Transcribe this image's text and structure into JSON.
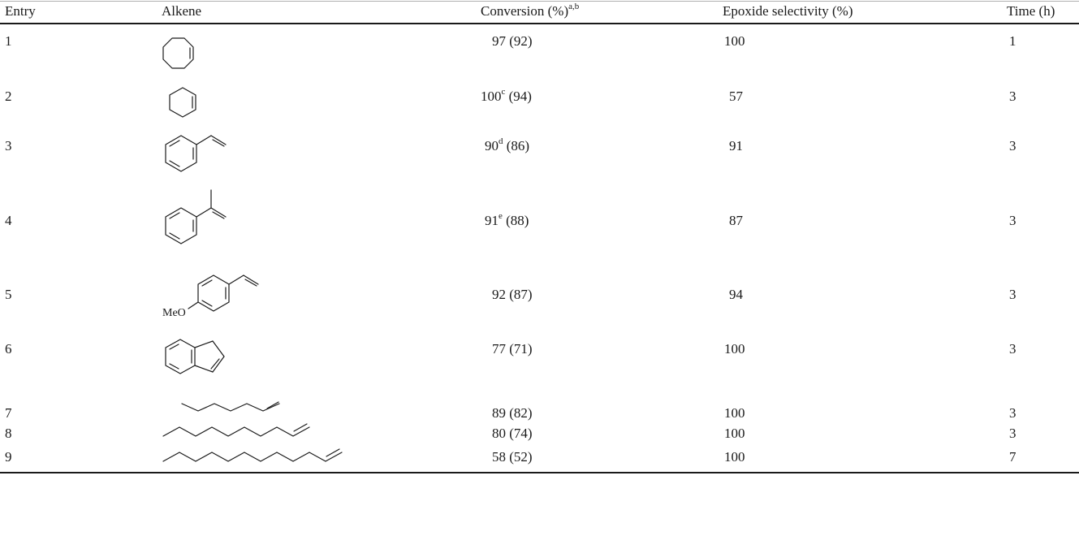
{
  "header": {
    "entry": "Entry",
    "alkene": "Alkene",
    "conversion": "Conversion (%)",
    "conversion_sup": "a,b",
    "selectivity": "Epoxide selectivity (%)",
    "time": "Time (h)"
  },
  "rows": [
    {
      "entry": "1",
      "conv": "97",
      "conv_sup": "",
      "conv_paren": " (92)",
      "sel": "100",
      "time": "1"
    },
    {
      "entry": "2",
      "conv": "100",
      "conv_sup": "c",
      "conv_paren": " (94)",
      "sel": "57",
      "time": "3"
    },
    {
      "entry": "3",
      "conv": "90",
      "conv_sup": "d",
      "conv_paren": " (86)",
      "sel": "91",
      "time": "3"
    },
    {
      "entry": "4",
      "conv": "91",
      "conv_sup": "e",
      "conv_paren": " (88)",
      "sel": "87",
      "time": "3"
    },
    {
      "entry": "5",
      "conv": "92",
      "conv_sup": "",
      "conv_paren": " (87)",
      "sel": "94",
      "time": "3"
    },
    {
      "entry": "6",
      "conv": "77",
      "conv_sup": "",
      "conv_paren": " (71)",
      "sel": "100",
      "time": "3"
    },
    {
      "entry": "7",
      "conv": "89",
      "conv_sup": "",
      "conv_paren": " (82)",
      "sel": "100",
      "time": "3"
    },
    {
      "entry": "8",
      "conv": "80",
      "conv_sup": "",
      "conv_paren": " (74)",
      "sel": "100",
      "time": "3"
    },
    {
      "entry": "9",
      "conv": "58",
      "conv_sup": "",
      "conv_paren": " (52)",
      "sel": "100",
      "time": "7"
    }
  ],
  "structures": {
    "row1": "cyclooctene-structure",
    "row2": "cyclohexene-structure",
    "row3": "styrene-structure",
    "row4": "alpha-methylstyrene-structure",
    "row5": "4-methoxystyrene-structure",
    "row5_label": "MeO",
    "row6": "indene-structure",
    "row7": "1-octene-structure",
    "row8": "1-decene-structure",
    "row9": "1-dodecene-structure"
  }
}
